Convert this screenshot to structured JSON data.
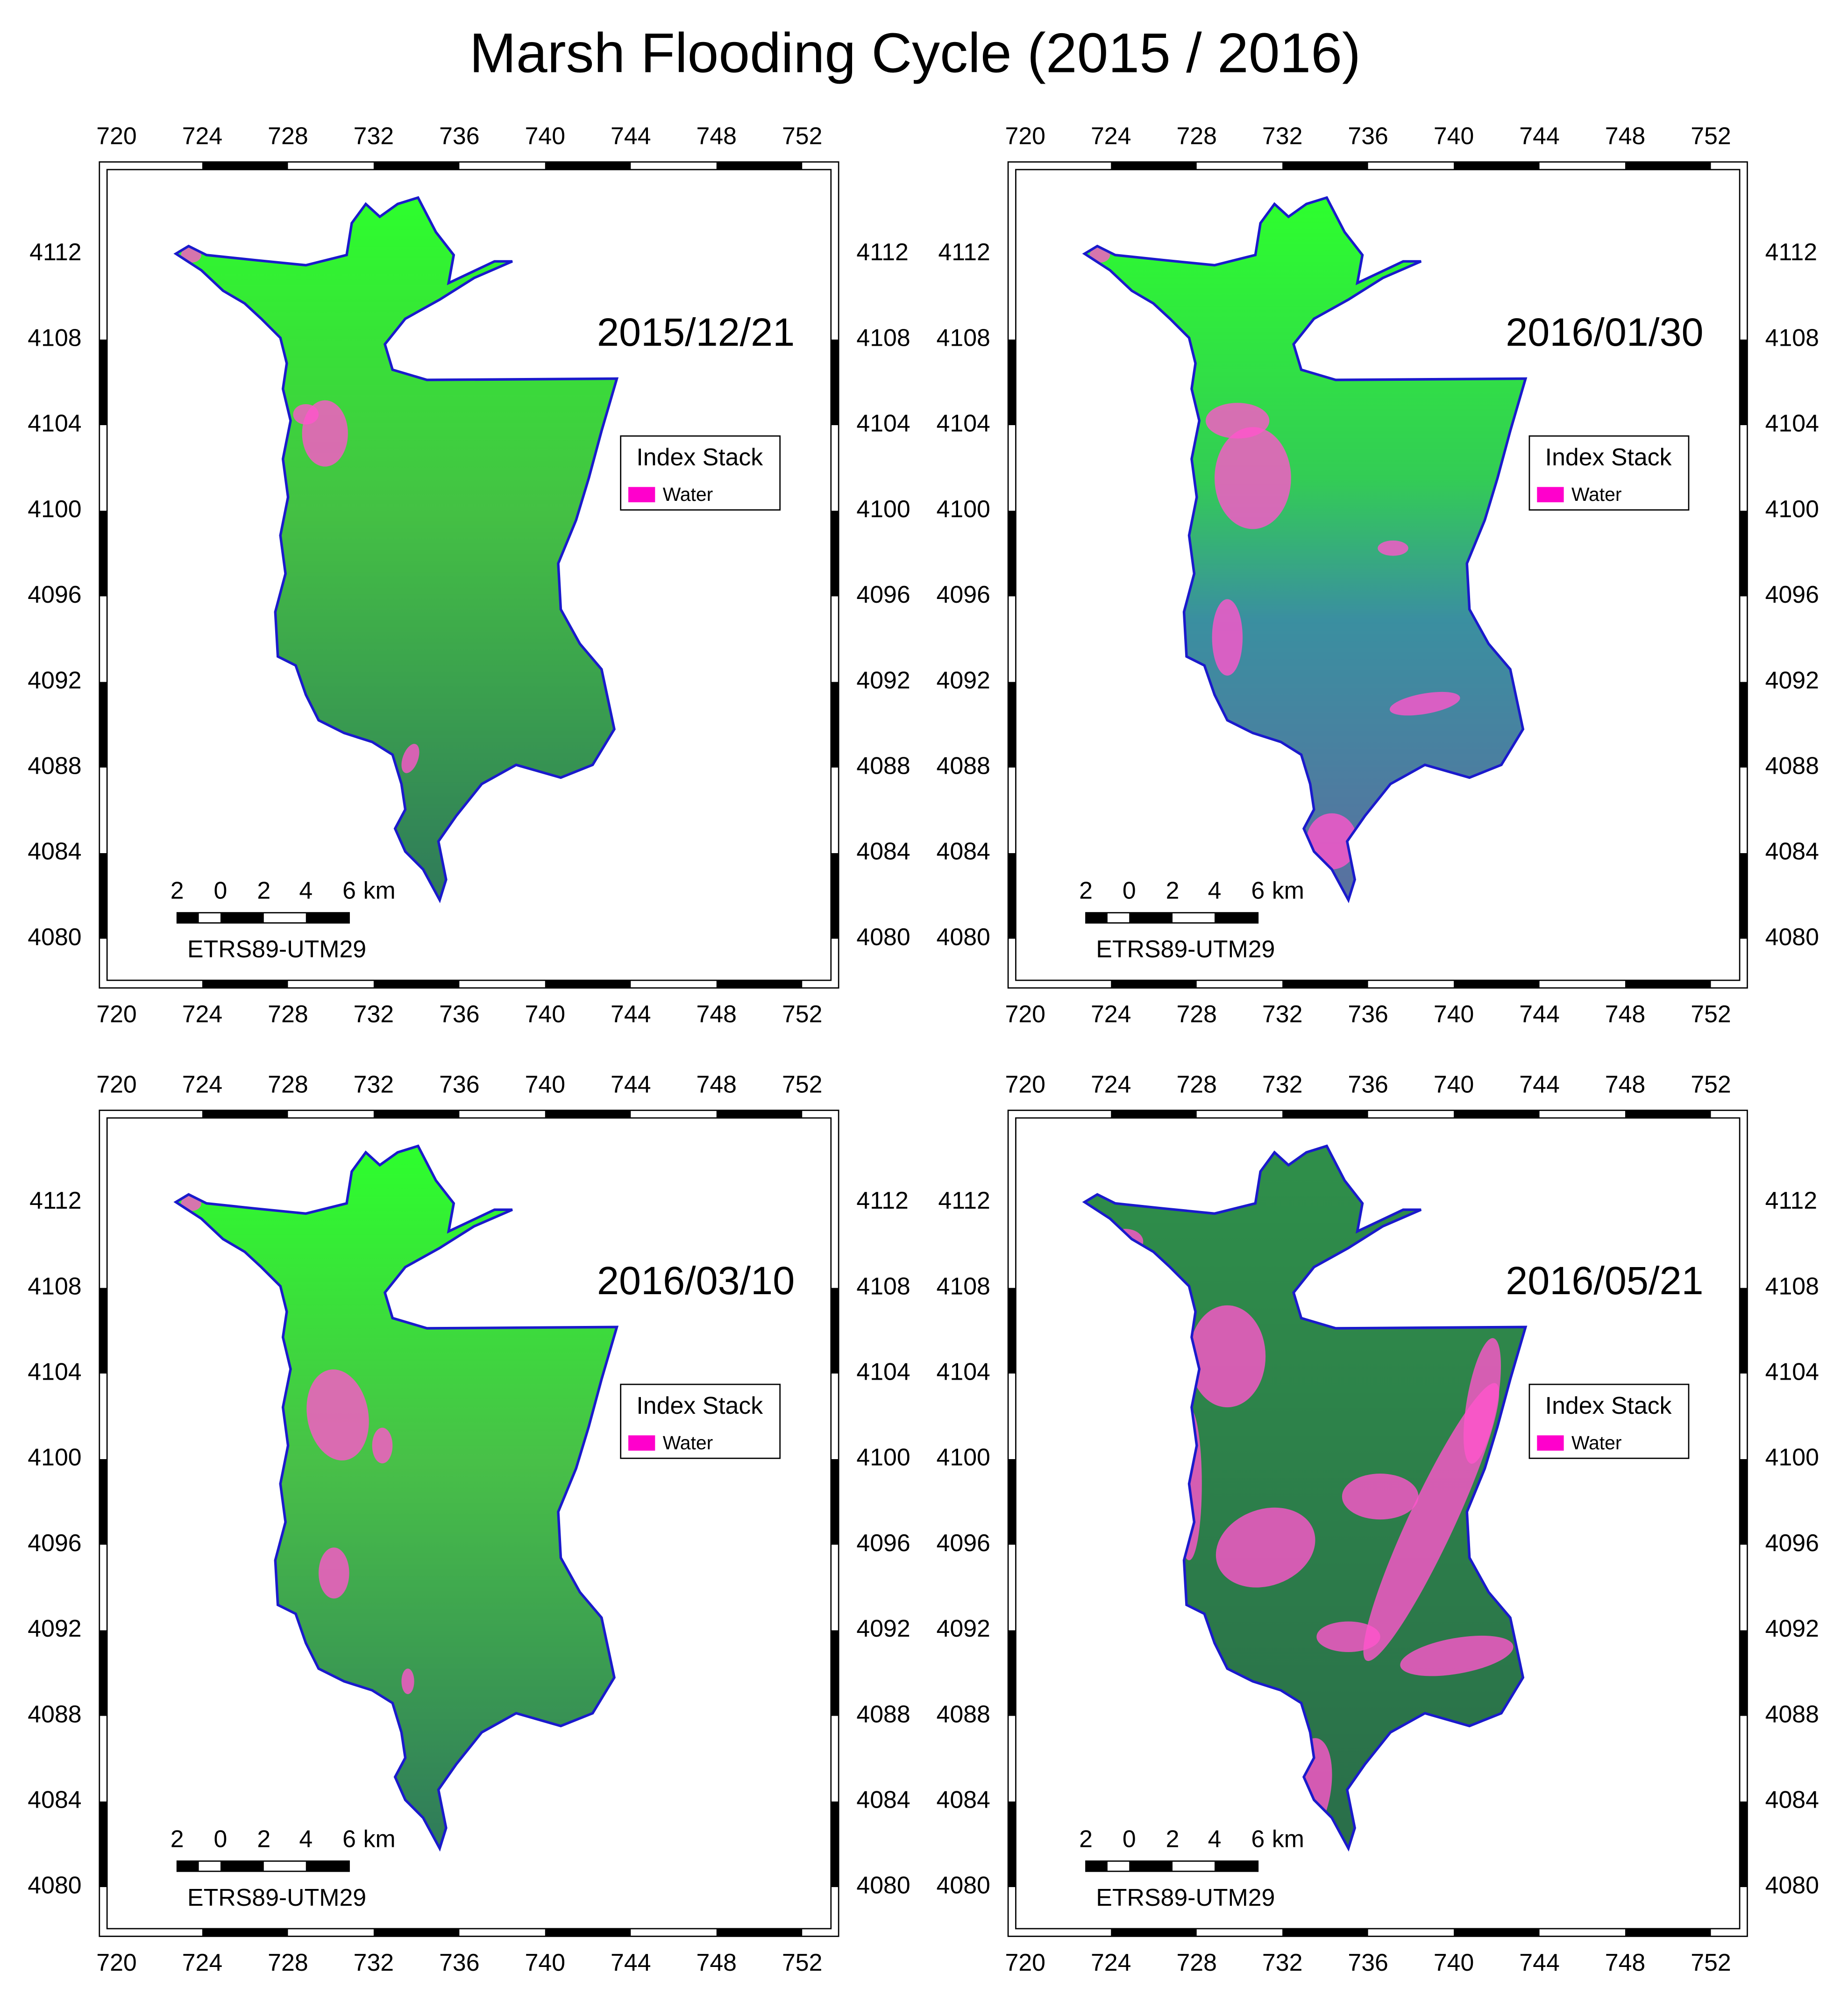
{
  "title": "Marsh Flooding Cycle (2015 / 2016)",
  "axes": {
    "xlim": [
      719.2,
      753.7
    ],
    "ylim": [
      4077.7,
      4116.3
    ],
    "xticks": [
      720,
      724,
      728,
      732,
      736,
      740,
      744,
      748,
      752
    ],
    "yticks": [
      4080,
      4084,
      4088,
      4092,
      4096,
      4100,
      4104,
      4108,
      4112
    ]
  },
  "legend": {
    "title": "Index Stack",
    "items": [
      {
        "label": "Water",
        "color": "#ff00cc"
      }
    ]
  },
  "scale_bar": {
    "labels": [
      2,
      0,
      2,
      4,
      6
    ],
    "unit": "km"
  },
  "crs": "ETRS89-UTM29",
  "panels": [
    {
      "date": "2015/12/21"
    },
    {
      "date": "2016/01/30"
    },
    {
      "date": "2016/03/10"
    },
    {
      "date": "2016/05/21"
    }
  ]
}
